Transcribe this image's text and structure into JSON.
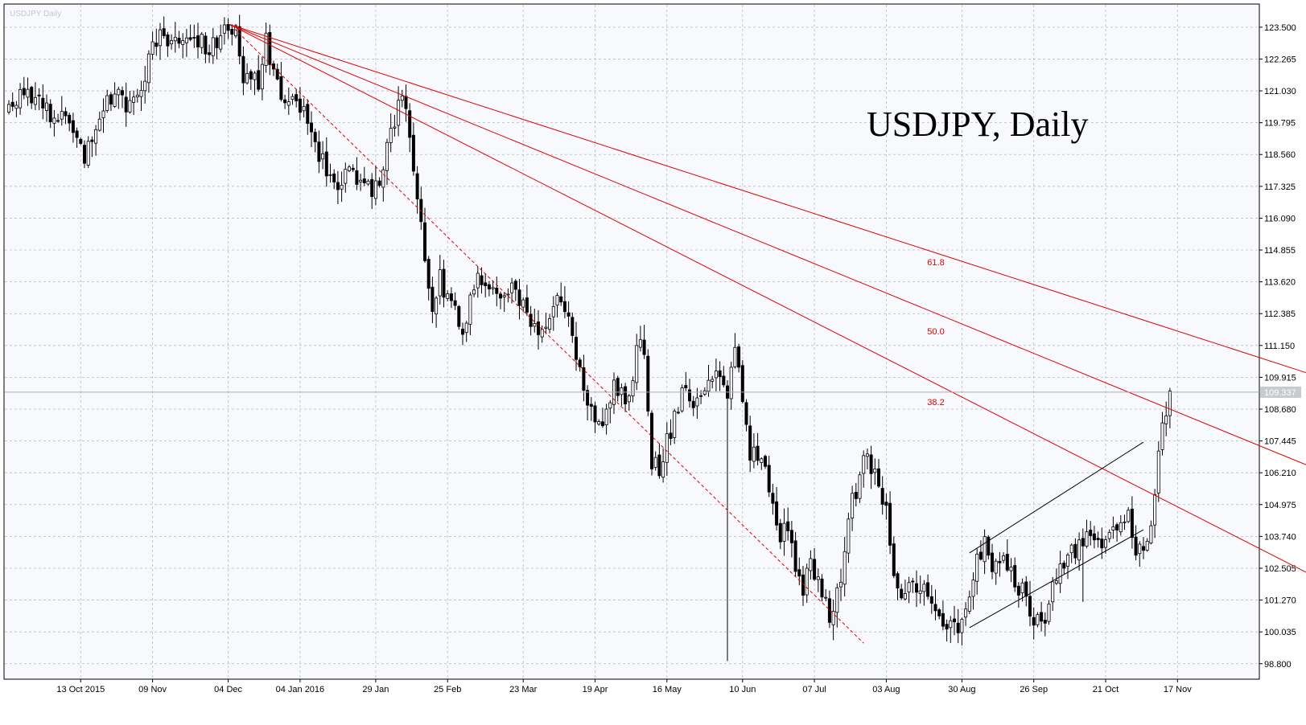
{
  "chart_data": {
    "type": "candlestick",
    "title": "USDJPY, Daily",
    "watermark": "USDJPY Daily",
    "ylim": [
      98.2,
      124.4
    ],
    "y_ticks": [
      "123.500",
      "122.265",
      "121.030",
      "119.795",
      "118.560",
      "117.325",
      "116.090",
      "114.855",
      "113.620",
      "112.385",
      "111.150",
      "109.915",
      "108.680",
      "107.445",
      "106.210",
      "104.975",
      "103.740",
      "102.505",
      "101.270",
      "100.035",
      "98.800"
    ],
    "x_ticks": [
      "13 Oct 2015",
      "09 Nov",
      "04 Dec",
      "04 Jan 2016",
      "29 Jan",
      "25 Feb",
      "23 Mar",
      "19 Apr",
      "16 May",
      "10 Jun",
      "07 Jul",
      "03 Aug",
      "30 Aug",
      "26 Sep",
      "21 Oct",
      "17 Nov"
    ],
    "current_price": "109.337",
    "fib_labels": [
      "61.8",
      "50.0",
      "38.2"
    ],
    "anchors": [
      {
        "i": 0,
        "p": 120.3
      },
      {
        "i": 4,
        "p": 120.8
      },
      {
        "i": 10,
        "p": 120.4
      },
      {
        "i": 16,
        "p": 119.6
      },
      {
        "i": 20,
        "p": 118.6
      },
      {
        "i": 24,
        "p": 120.2
      },
      {
        "i": 28,
        "p": 121.2
      },
      {
        "i": 32,
        "p": 120.4
      },
      {
        "i": 35,
        "p": 121.4
      },
      {
        "i": 38,
        "p": 122.6
      },
      {
        "i": 40,
        "p": 123.3
      },
      {
        "i": 44,
        "p": 122.8
      },
      {
        "i": 48,
        "p": 123.4
      },
      {
        "i": 52,
        "p": 122.7
      },
      {
        "i": 56,
        "p": 123.1
      },
      {
        "i": 60,
        "p": 123.4
      },
      {
        "i": 62,
        "p": 121.6
      },
      {
        "i": 66,
        "p": 121.2
      },
      {
        "i": 68,
        "p": 122.9
      },
      {
        "i": 70,
        "p": 121.5
      },
      {
        "i": 74,
        "p": 120.5
      },
      {
        "i": 78,
        "p": 120.3
      },
      {
        "i": 82,
        "p": 118.5
      },
      {
        "i": 86,
        "p": 117.3
      },
      {
        "i": 90,
        "p": 117.8
      },
      {
        "i": 94,
        "p": 117.4
      },
      {
        "i": 96,
        "p": 116.8
      },
      {
        "i": 100,
        "p": 118.7
      },
      {
        "i": 104,
        "p": 121.2
      },
      {
        "i": 106,
        "p": 119.0
      },
      {
        "i": 108,
        "p": 116.6
      },
      {
        "i": 110,
        "p": 114.8
      },
      {
        "i": 112,
        "p": 112.5
      },
      {
        "i": 114,
        "p": 113.8
      },
      {
        "i": 118,
        "p": 112.4
      },
      {
        "i": 120,
        "p": 111.9
      },
      {
        "i": 124,
        "p": 114.0
      },
      {
        "i": 128,
        "p": 113.2
      },
      {
        "i": 132,
        "p": 113.4
      },
      {
        "i": 136,
        "p": 112.6
      },
      {
        "i": 140,
        "p": 111.5
      },
      {
        "i": 144,
        "p": 112.6
      },
      {
        "i": 146,
        "p": 113.2
      },
      {
        "i": 148,
        "p": 112.0
      },
      {
        "i": 152,
        "p": 109.2
      },
      {
        "i": 156,
        "p": 108.0
      },
      {
        "i": 160,
        "p": 109.4
      },
      {
        "i": 164,
        "p": 108.9
      },
      {
        "i": 166,
        "p": 111.5
      },
      {
        "i": 168,
        "p": 110.6
      },
      {
        "i": 170,
        "p": 106.8
      },
      {
        "i": 172,
        "p": 106.5
      },
      {
        "i": 174,
        "p": 107.3
      },
      {
        "i": 178,
        "p": 109.2
      },
      {
        "i": 182,
        "p": 108.8
      },
      {
        "i": 186,
        "p": 110.0
      },
      {
        "i": 190,
        "p": 109.5
      },
      {
        "i": 192,
        "p": 110.8
      },
      {
        "i": 194,
        "p": 109.4
      },
      {
        "i": 196,
        "p": 107.0
      },
      {
        "i": 200,
        "p": 106.2
      },
      {
        "i": 204,
        "p": 103.9
      },
      {
        "i": 206,
        "p": 104.3
      },
      {
        "i": 208,
        "p": 102.1
      },
      {
        "i": 210,
        "p": 101.7
      },
      {
        "i": 212,
        "p": 102.8
      },
      {
        "i": 216,
        "p": 101.2
      },
      {
        "i": 218,
        "p": 100.5
      },
      {
        "i": 220,
        "p": 102.3
      },
      {
        "i": 222,
        "p": 104.5
      },
      {
        "i": 224,
        "p": 105.6
      },
      {
        "i": 226,
        "p": 106.7
      },
      {
        "i": 228,
        "p": 106.4
      },
      {
        "i": 232,
        "p": 104.5
      },
      {
        "i": 234,
        "p": 102.4
      },
      {
        "i": 236,
        "p": 101.2
      },
      {
        "i": 240,
        "p": 102.0
      },
      {
        "i": 244,
        "p": 101.0
      },
      {
        "i": 248,
        "p": 100.2
      },
      {
        "i": 252,
        "p": 100.3
      },
      {
        "i": 254,
        "p": 101.8
      },
      {
        "i": 258,
        "p": 103.7
      },
      {
        "i": 260,
        "p": 102.2
      },
      {
        "i": 264,
        "p": 102.8
      },
      {
        "i": 268,
        "p": 101.6
      },
      {
        "i": 270,
        "p": 100.5
      },
      {
        "i": 274,
        "p": 100.8
      },
      {
        "i": 278,
        "p": 102.5
      },
      {
        "i": 282,
        "p": 103.3
      },
      {
        "i": 286,
        "p": 103.6
      },
      {
        "i": 290,
        "p": 103.5
      },
      {
        "i": 294,
        "p": 104.4
      },
      {
        "i": 296,
        "p": 104.6
      },
      {
        "i": 298,
        "p": 103.3
      },
      {
        "i": 300,
        "p": 102.9
      },
      {
        "i": 302,
        "p": 104.6
      },
      {
        "i": 304,
        "p": 106.8
      },
      {
        "i": 306,
        "p": 108.8
      },
      {
        "i": 307,
        "p": 109.4
      }
    ],
    "lines": [
      {
        "name": "fan-61-8",
        "color": "#e00000",
        "dash": false,
        "i0": 58.5,
        "p0": 123.6,
        "i1": 345,
        "p1": 110.0
      },
      {
        "name": "fan-50-0",
        "color": "#e00000",
        "dash": false,
        "i0": 58.5,
        "p0": 123.6,
        "i1": 345,
        "p1": 106.4
      },
      {
        "name": "fan-38-2",
        "color": "#e00000",
        "dash": false,
        "i0": 58.5,
        "p0": 123.6,
        "i1": 345,
        "p1": 102.2
      },
      {
        "name": "trend-dashed",
        "color": "#e00000",
        "dash": true,
        "i0": 58.5,
        "p0": 123.6,
        "i1": 226,
        "p1": 99.6
      },
      {
        "name": "channel-upper",
        "color": "#000000",
        "dash": false,
        "i0": 254,
        "p0": 103.1,
        "i1": 300,
        "p1": 107.4
      },
      {
        "name": "channel-lower",
        "color": "#000000",
        "dash": false,
        "i0": 254,
        "p0": 100.2,
        "i1": 300,
        "p1": 104.0
      }
    ],
    "extremes": [
      {
        "i": 190,
        "low": 98.9
      },
      {
        "i": 284,
        "low": 101.2
      }
    ]
  }
}
